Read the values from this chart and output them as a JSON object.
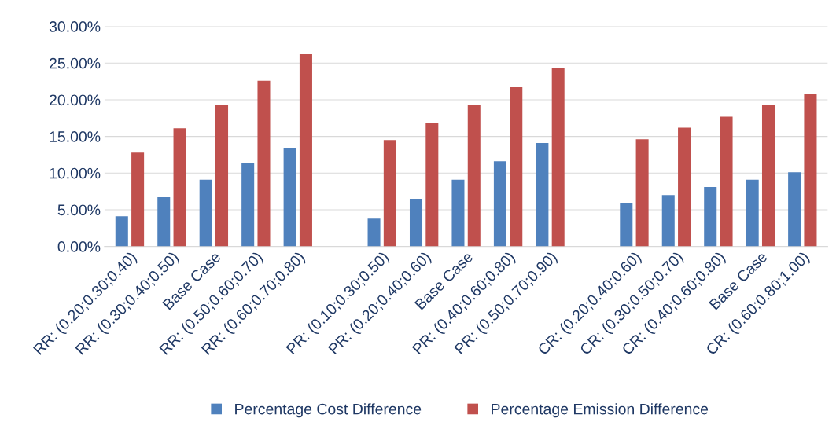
{
  "chart_data": {
    "type": "bar",
    "categories": [
      "RR: (0.20;0.30;0.40)",
      "RR: (0.30;0.40;0.50)",
      "Base Case",
      "RR: (0.50;0.60;0.70)",
      "RR: (0.60;0.70;0.80)",
      null,
      "PR: (0.10;0.30;0.50)",
      "PR: (0.20;0.40;0.60)",
      "Base Case",
      "PR: (0.40;0.60;0.80)",
      "PR: (0.50;0.70;0.90)",
      null,
      "CR: (0.20;0.40;0.60)",
      "CR: (0.30;0.50;0.70)",
      "CR: (0.40;0.60;0.80)",
      "Base Case",
      "CR: (0.60;0.80;1.00)"
    ],
    "series": [
      {
        "name": "Percentage Cost Difference",
        "color": "#4f81bd",
        "values": [
          4.1,
          6.7,
          9.1,
          11.4,
          13.4,
          null,
          3.8,
          6.5,
          9.1,
          11.6,
          14.1,
          null,
          5.9,
          7.0,
          8.1,
          9.1,
          10.1
        ]
      },
      {
        "name": "Percentage Emission Difference",
        "color": "#c0504d",
        "values": [
          12.8,
          16.1,
          19.3,
          22.6,
          26.2,
          null,
          14.5,
          16.8,
          19.3,
          21.7,
          24.3,
          null,
          14.6,
          16.2,
          17.7,
          19.3,
          20.8
        ]
      }
    ],
    "ylim": [
      0,
      30
    ],
    "yticks": [
      {
        "value": 0,
        "label": "0.00%"
      },
      {
        "value": 5,
        "label": "5.00%"
      },
      {
        "value": 10,
        "label": "10.00%"
      },
      {
        "value": 15,
        "label": "15.00%"
      },
      {
        "value": 20,
        "label": "20.00%"
      },
      {
        "value": 25,
        "label": "25.00%"
      },
      {
        "value": 30,
        "label": "30.00%"
      }
    ],
    "grid": "y",
    "legend": "bottom"
  }
}
